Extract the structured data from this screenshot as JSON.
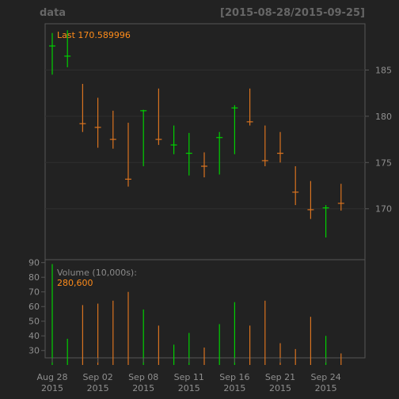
{
  "header": {
    "title": "data",
    "range": "[2015-08-28/2015-09-25]"
  },
  "price_legend": {
    "text": "Last 170.589996",
    "color": "#ff8c1a"
  },
  "volume_legend": {
    "label": "Volume (10,000s):",
    "value": "280,600",
    "label_color": "#8a8a8a",
    "value_color": "#ff8c1a"
  },
  "colors": {
    "background": "#222222",
    "panel_border": "#555555",
    "grid": "#2f2f2f",
    "up": "#00d000",
    "down": "#d9731f",
    "axis_text": "#8f8f8f"
  },
  "chart_data": [
    {
      "type": "bar",
      "subtype": "hlc",
      "title": "data",
      "x": [
        "2015-08-28",
        "2015-08-31",
        "2015-09-01",
        "2015-09-02",
        "2015-09-03",
        "2015-09-04",
        "2015-09-08",
        "2015-09-09",
        "2015-09-10",
        "2015-09-11",
        "2015-09-14",
        "2015-09-15",
        "2015-09-16",
        "2015-09-17",
        "2015-09-18",
        "2015-09-21",
        "2015-09-22",
        "2015-09-23",
        "2015-09-24",
        "2015-09-25"
      ],
      "high": [
        189.0,
        189.3,
        183.5,
        182.0,
        180.6,
        179.3,
        180.7,
        183.0,
        179.0,
        178.2,
        176.1,
        178.3,
        181.2,
        183.0,
        179.0,
        178.3,
        174.6,
        173.0,
        170.4,
        172.7
      ],
      "low": [
        184.5,
        185.3,
        178.3,
        176.6,
        176.5,
        172.4,
        174.6,
        176.9,
        175.9,
        173.6,
        173.4,
        173.7,
        175.9,
        179.0,
        174.6,
        175.0,
        170.4,
        168.9,
        166.9,
        169.8
      ],
      "close": [
        187.6,
        186.5,
        179.2,
        178.8,
        177.5,
        173.2,
        180.6,
        177.5,
        176.9,
        176.0,
        174.6,
        177.7,
        180.9,
        179.4,
        175.2,
        176.0,
        171.8,
        169.9,
        170.1,
        170.59
      ],
      "direction": [
        "up",
        "up",
        "down",
        "down",
        "down",
        "down",
        "up",
        "down",
        "up",
        "up",
        "down",
        "up",
        "up",
        "down",
        "down",
        "down",
        "down",
        "down",
        "up",
        "down"
      ],
      "ylim": [
        164.5,
        190.0
      ],
      "yticks": [
        170,
        175,
        180,
        185
      ],
      "last": 170.589996
    },
    {
      "type": "bar",
      "title": "Volume (10,000s):",
      "x": [
        "2015-08-28",
        "2015-08-31",
        "2015-09-01",
        "2015-09-02",
        "2015-09-03",
        "2015-09-04",
        "2015-09-08",
        "2015-09-09",
        "2015-09-10",
        "2015-09-11",
        "2015-09-14",
        "2015-09-15",
        "2015-09-16",
        "2015-09-17",
        "2015-09-18",
        "2015-09-21",
        "2015-09-22",
        "2015-09-23",
        "2015-09-24",
        "2015-09-25"
      ],
      "values": [
        89,
        38,
        61,
        62,
        64,
        70,
        58,
        47,
        34,
        42,
        32,
        48,
        63,
        47,
        64,
        35,
        31,
        53,
        40,
        28
      ],
      "direction": [
        "up",
        "up",
        "down",
        "down",
        "down",
        "down",
        "up",
        "down",
        "up",
        "up",
        "down",
        "up",
        "up",
        "down",
        "down",
        "down",
        "down",
        "down",
        "up",
        "down"
      ],
      "ylim": [
        25,
        92
      ],
      "yticks": [
        30,
        40,
        50,
        60,
        70,
        80,
        90
      ],
      "last": "280,600"
    }
  ],
  "xaxis": {
    "ticks": [
      {
        "index": 0,
        "label1": "Aug 28",
        "label2": "2015"
      },
      {
        "index": 3,
        "label1": "Sep 02",
        "label2": "2015"
      },
      {
        "index": 6,
        "label1": "Sep 08",
        "label2": "2015"
      },
      {
        "index": 9,
        "label1": "Sep 11",
        "label2": "2015"
      },
      {
        "index": 12,
        "label1": "Sep 16",
        "label2": "2015"
      },
      {
        "index": 15,
        "label1": "Sep 21",
        "label2": "2015"
      },
      {
        "index": 18,
        "label1": "Sep 24",
        "label2": "2015"
      }
    ]
  }
}
